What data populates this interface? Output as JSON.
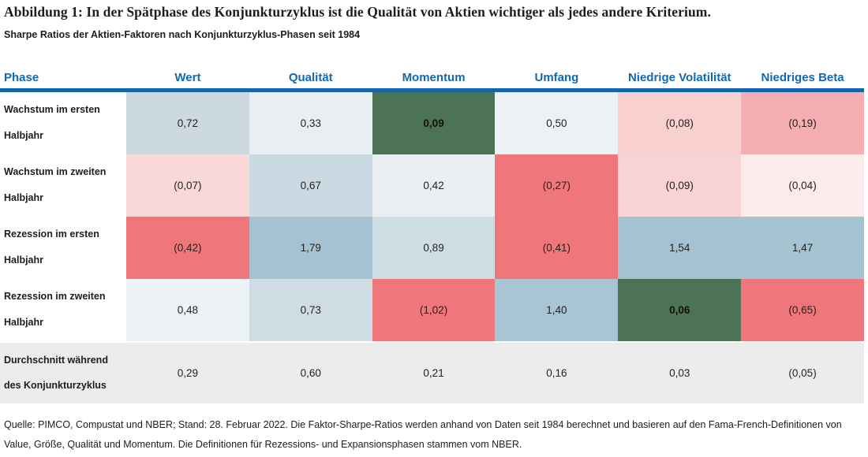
{
  "figure": {
    "title": "Abbildung 1: In der Spätphase des Konjunkturzyklus ist die Qualität von Aktien wichtiger als jedes andere Kriterium.",
    "subtitle": "Sharpe Ratios der Aktien-Faktoren nach Konjunkturzyklus-Phasen seit 1984",
    "source_note": "Quelle: PIMCO, Compustat und NBER; Stand: 28. Februar 2022. Die Faktor-Sharpe-Ratios werden anhand von Daten seit 1984 berechnet und basieren auf den Fama-French-Definitionen von Value, Größe, Qualität und Momentum. Die Definitionen für Rezessions- und Expansionsphasen stammen vom NBER."
  },
  "colors": {
    "header_text": "#1268b3",
    "header_rule": "#1565ad",
    "strong_blue": "#a4c2d1",
    "strong_red": "#ef767b",
    "highlight_green": "#4d7355",
    "summary_row_bg": "#ececec"
  },
  "table": {
    "phase_column_header": "Phase",
    "columns": [
      "Wert",
      "Qualität",
      "Momentum",
      "Umfang",
      "Niedrige Volatilität",
      "Niedriges Beta"
    ],
    "rows": [
      {
        "phase": "Wachstum im ersten Halbjahr",
        "summary": false,
        "cells": [
          {
            "display": "0,72",
            "bg": "#ccd9e1",
            "bold": false
          },
          {
            "display": "0,33",
            "bg": "#e9eef3",
            "bold": false
          },
          {
            "display": "0,09",
            "bg": "#4d7355",
            "bold": true
          },
          {
            "display": "0,50",
            "bg": "#ecf1f5",
            "bold": false
          },
          {
            "display": "(0,08)",
            "bg": "#f8d0d0",
            "bold": false
          },
          {
            "display": "(0,19)",
            "bg": "#f5aeb1",
            "bold": false
          }
        ]
      },
      {
        "phase": "Wachstum im zweiten Halbjahr",
        "summary": false,
        "cells": [
          {
            "display": "(0,07)",
            "bg": "#f9d8d8",
            "bold": false
          },
          {
            "display": "0,67",
            "bg": "#cbd9e2",
            "bold": false
          },
          {
            "display": "0,42",
            "bg": "#eaeff4",
            "bold": false
          },
          {
            "display": "(0,27)",
            "bg": "#ef767b",
            "bold": false
          },
          {
            "display": "(0,09)",
            "bg": "#f8d3d3",
            "bold": false
          },
          {
            "display": "(0,04)",
            "bg": "#fcebed",
            "bold": false
          }
        ]
      },
      {
        "phase": "Rezession im ersten Halbjahr",
        "summary": false,
        "cells": [
          {
            "display": "(0,42)",
            "bg": "#ef767b",
            "bold": false
          },
          {
            "display": "1,79",
            "bg": "#a4c2d1",
            "bold": false
          },
          {
            "display": "0,89",
            "bg": "#cfdde5",
            "bold": false
          },
          {
            "display": "(0,41)",
            "bg": "#ef767b",
            "bold": false
          },
          {
            "display": "1,54",
            "bg": "#a4c2d1",
            "bold": false
          },
          {
            "display": "1,47",
            "bg": "#a6c3d2",
            "bold": false
          }
        ]
      },
      {
        "phase": "Rezession im zweiten Halbjahr",
        "summary": false,
        "cells": [
          {
            "display": "0,48",
            "bg": "#edf2f6",
            "bold": false
          },
          {
            "display": "0,73",
            "bg": "#cfdce4",
            "bold": false
          },
          {
            "display": "(1,02)",
            "bg": "#ef767b",
            "bold": false
          },
          {
            "display": "1,40",
            "bg": "#a9c5d3",
            "bold": false
          },
          {
            "display": "0,06",
            "bg": "#4d7355",
            "bold": true
          },
          {
            "display": "(0,65)",
            "bg": "#ef767b",
            "bold": false
          }
        ]
      },
      {
        "phase": "Durchschnitt während des Konjunkturzyklus",
        "summary": true,
        "cells": [
          {
            "display": "0,29",
            "bg": "transparent",
            "bold": false
          },
          {
            "display": "0,60",
            "bg": "transparent",
            "bold": false
          },
          {
            "display": "0,21",
            "bg": "transparent",
            "bold": false
          },
          {
            "display": "0,16",
            "bg": "transparent",
            "bold": false
          },
          {
            "display": "0,03",
            "bg": "transparent",
            "bold": false
          },
          {
            "display": "(0,05)",
            "bg": "transparent",
            "bold": false
          }
        ]
      }
    ]
  },
  "chart_data": {
    "type": "heatmap",
    "title": "Abbildung 1: In der Spätphase des Konjunkturzyklus ist die Qualität von Aktien wichtiger als jedes andere Kriterium.",
    "subtitle": "Sharpe Ratios der Aktien-Faktoren nach Konjunkturzyklus-Phasen seit 1984",
    "columns": [
      "Wert",
      "Qualität",
      "Momentum",
      "Umfang",
      "Niedrige Volatilität",
      "Niedriges Beta"
    ],
    "rows": [
      "Wachstum im ersten Halbjahr",
      "Wachstum im zweiten Halbjahr",
      "Rezession im ersten Halbjahr",
      "Rezession im zweiten Halbjahr",
      "Durchschnitt während des Konjunkturzyklus"
    ],
    "values": [
      [
        0.72,
        0.33,
        0.09,
        0.5,
        -0.08,
        -0.19
      ],
      [
        -0.07,
        0.67,
        0.42,
        -0.27,
        -0.09,
        -0.04
      ],
      [
        -0.42,
        1.79,
        0.89,
        -0.41,
        1.54,
        1.47
      ],
      [
        0.48,
        0.73,
        -1.02,
        1.4,
        0.06,
        -0.65
      ],
      [
        0.29,
        0.6,
        0.21,
        0.16,
        0.03,
        -0.05
      ]
    ],
    "color_scale": "red = negativ, blau = positiv, dunkelgrün = hervorgehoben, letzte Zeile grau",
    "value_format": "deutsches Dezimalkomma, negative Werte in Klammern"
  }
}
